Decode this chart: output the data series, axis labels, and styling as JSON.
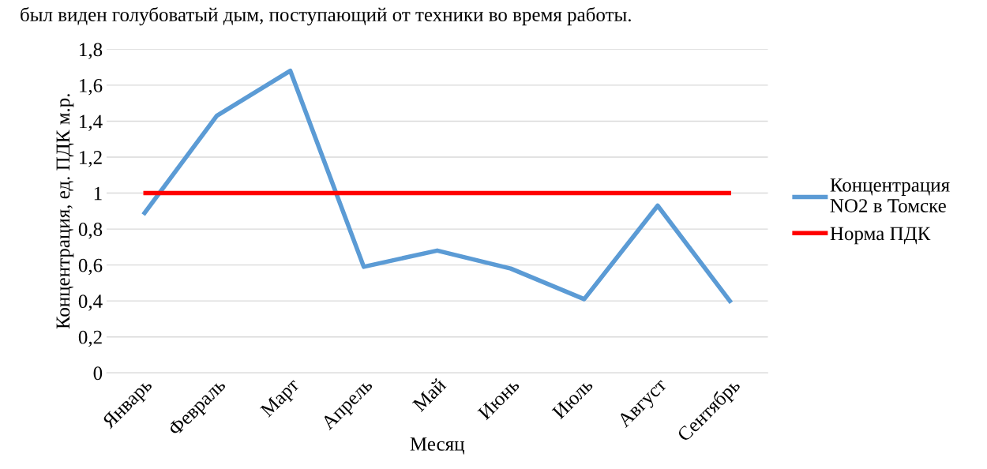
{
  "chart_data": {
    "type": "line",
    "xlabel": "Месяц",
    "ylabel": "Концентрация, ед. ПДК м.р.",
    "annotations": [
      "был виден голубоватый дым, поступающий от техники во время работы."
    ],
    "categories": [
      "Январь",
      "Февраль",
      "Март",
      "Апрель",
      "Май",
      "Июнь",
      "Июль",
      "Август",
      "Сентябрь"
    ],
    "series": [
      {
        "name": "Концентрация NO2 в Томске",
        "color": "#5b9bd5",
        "values": [
          0.88,
          1.43,
          1.68,
          0.59,
          0.68,
          0.58,
          0.41,
          0.93,
          0.39
        ]
      },
      {
        "name": "Норма ПДК",
        "color": "#ff0000",
        "values": [
          1,
          1,
          1,
          1,
          1,
          1,
          1,
          1,
          1
        ]
      }
    ],
    "ylim": [
      0,
      1.8
    ],
    "yticks": [
      {
        "value": 0,
        "label": "0"
      },
      {
        "value": 0.2,
        "label": "0,2"
      },
      {
        "value": 0.4,
        "label": "0,4"
      },
      {
        "value": 0.6,
        "label": "0,6"
      },
      {
        "value": 0.8,
        "label": "0,8"
      },
      {
        "value": 1,
        "label": "1"
      },
      {
        "value": 1.2,
        "label": "1,2"
      },
      {
        "value": 1.4,
        "label": "1,4"
      },
      {
        "value": 1.6,
        "label": "1,6"
      },
      {
        "value": 1.8,
        "label": "1,8"
      }
    ],
    "grid": "y",
    "legend": "right",
    "marker": "none",
    "line_style": "solid"
  }
}
